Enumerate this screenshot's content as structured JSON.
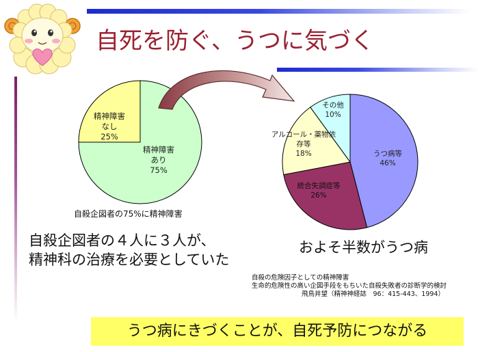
{
  "title": "自死を防ぐ、うつに気づく",
  "left_caption": "自殺企図者の75%に精神障害",
  "left_text_line1": "自殺企図者の４人に３人が、",
  "left_text_line2": "精神科の治療を必要としていた",
  "right_text": "およそ半数がうつ病",
  "source_lines": [
    "自殺の危険因子としての精神障害",
    "生命的危険性の高い企図手段をもちいた自殺失敗者の診断学的検討",
    "飛鳥井望（精神神経誌　96：415-443、1994）"
  ],
  "banner": "うつ病にきづくことが、自死予防につながる",
  "mascot_icon": "sheep-mascot-icon",
  "colors": {
    "title": "#9b2131",
    "banner_bg": "#ffff66",
    "rule": "#1e2bd1"
  },
  "chart_data": [
    {
      "type": "pie",
      "slices": [
        {
          "label_lines": [
            "精神障害",
            "なし",
            "25%"
          ],
          "value": 25,
          "color": "#ffff99"
        },
        {
          "label_lines": [
            "精神障害",
            "あり",
            "75%"
          ],
          "value": 75,
          "color": "#ccffcc"
        }
      ]
    },
    {
      "type": "pie",
      "slices": [
        {
          "label_lines": [
            "うつ病等",
            "46%"
          ],
          "value": 46,
          "color": "#9999ff"
        },
        {
          "label_lines": [
            "統合失調症等",
            "26%"
          ],
          "value": 26,
          "color": "#993366"
        },
        {
          "label_lines": [
            "アルコール・薬物依",
            "存等",
            "18%"
          ],
          "value": 18,
          "color": "#ffffcc"
        },
        {
          "label_lines": [
            "その他",
            "10%"
          ],
          "value": 10,
          "color": "#ccffff"
        }
      ]
    }
  ]
}
